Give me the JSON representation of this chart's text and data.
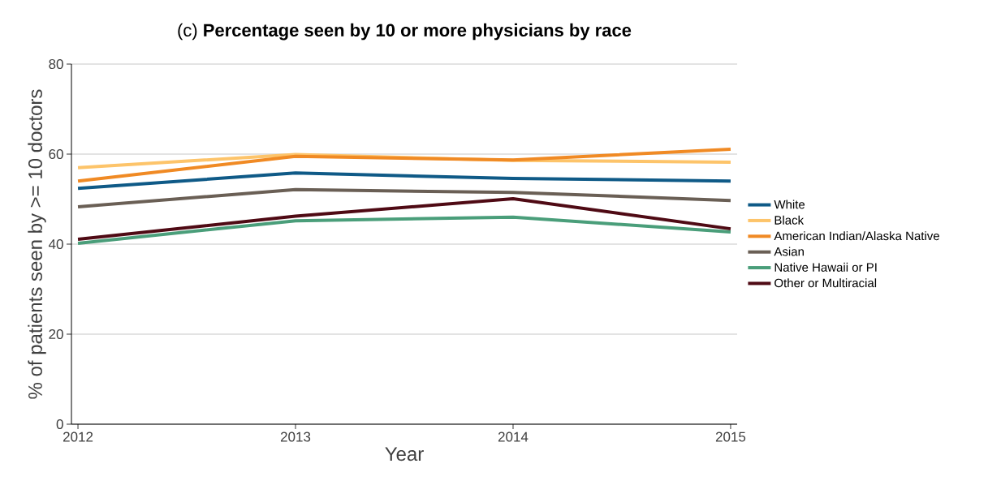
{
  "chart_data": {
    "type": "line",
    "title": "(c) **Percentage seen by 10 or more physicians by race**",
    "xlabel": "Year",
    "ylabel": "% of patients seen by >= 10 doctors",
    "x": [
      2012,
      2013,
      2014,
      2015
    ],
    "series": [
      {
        "name": "White",
        "color": "#0f5a87",
        "values": [
          52.4,
          55.8,
          54.6,
          54.0
        ]
      },
      {
        "name": "Black",
        "color": "#fdc46a",
        "values": [
          57.0,
          59.9,
          58.6,
          58.2
        ]
      },
      {
        "name": "American Indian/Alaska Native",
        "color": "#f08a24",
        "values": [
          54.0,
          59.5,
          58.7,
          61.1
        ]
      },
      {
        "name": "Asian",
        "color": "#6a5f55",
        "values": [
          48.3,
          52.1,
          51.5,
          49.7
        ]
      },
      {
        "name": "Native Hawaii or PI",
        "color": "#4a9e7a",
        "values": [
          40.2,
          45.2,
          46.0,
          42.7
        ]
      },
      {
        "name": "Other or Multiracial",
        "color": "#4f0a14",
        "values": [
          41.1,
          46.2,
          50.1,
          43.4
        ]
      }
    ],
    "xlim": [
      2011.97,
      2015.03
    ],
    "xticks": [
      2012,
      2013,
      2014,
      2015
    ],
    "ylim": [
      0,
      80
    ],
    "yticks": [
      0,
      20,
      40,
      60,
      80
    ],
    "grid": "y",
    "legend": "right",
    "marker": "none",
    "line_style": "solid"
  }
}
